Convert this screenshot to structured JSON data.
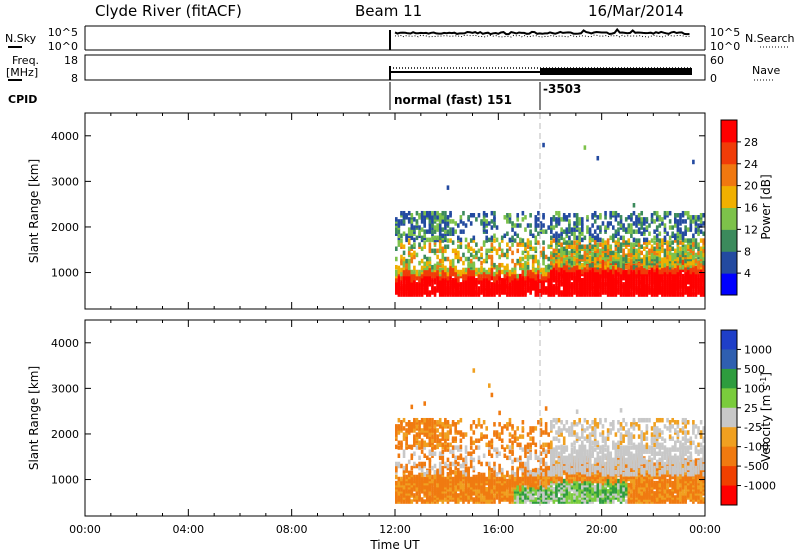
{
  "header": {
    "station": "Clyde River (fitACF)",
    "beam": "Beam 11",
    "date": "16/Mar/2014"
  },
  "strips": {
    "nsky_label": "N.Sky",
    "nsearch_label": "N.Search",
    "nsky_ticks": [
      "10^5",
      "10^0"
    ],
    "nsearch_ticks": [
      "10^5",
      "10^0"
    ],
    "freq_label_line1": "Freq.",
    "freq_label_line2": "[MHz]",
    "freq_ticks": [
      "18",
      "8"
    ],
    "nave_label": "Nave",
    "nave_ticks": [
      "60",
      "0"
    ],
    "cpid_label": "CPID",
    "cpid_mode_text": "normal (fast) 151",
    "cpid_change_text": "-3503",
    "cpid_change_hour": 18
  },
  "colors": {
    "power": [
      "#0000ff",
      "#234aa0",
      "#3b8a5c",
      "#7dc24a",
      "#f0b000",
      "#f07810",
      "#f03c08",
      "#ff0000"
    ],
    "velocity": [
      "#ff0000",
      "#f04000",
      "#f07a10",
      "#f0a020",
      "#c8c8c8",
      "#7acc3c",
      "#2e9c3e",
      "#2f5fb0",
      "#1f3fc8"
    ]
  },
  "chart_data": [
    {
      "type": "heatmap",
      "title": "Power",
      "ylabel": "Slant Range [km]",
      "ylim": [
        200,
        4500
      ],
      "y_ticks": [
        1000,
        2000,
        3000,
        4000
      ],
      "xlim": [
        0,
        24
      ],
      "data_x_range": [
        12,
        24
      ],
      "colorbar_label": "Power [dB]",
      "colorbar_ticks": [
        "4",
        "8",
        "12",
        "16",
        "20",
        "24",
        "28"
      ],
      "colorbar_range": [
        0,
        32
      ]
    },
    {
      "type": "heatmap",
      "title": "Velocity",
      "ylabel": "Slant Range [km]",
      "ylim": [
        200,
        4500
      ],
      "y_ticks": [
        1000,
        2000,
        3000,
        4000
      ],
      "xlim": [
        0,
        24
      ],
      "data_x_range": [
        12,
        24
      ],
      "xlabel": "Time UT",
      "x_ticks": [
        "00:00",
        "04:00",
        "08:00",
        "12:00",
        "16:00",
        "20:00",
        "00:00"
      ],
      "colorbar_label": "Velocity [m s^-1]",
      "colorbar_ticks": [
        "1000",
        "500",
        "100",
        "25",
        "-25",
        "-100",
        "-500",
        "-1000"
      ]
    }
  ]
}
